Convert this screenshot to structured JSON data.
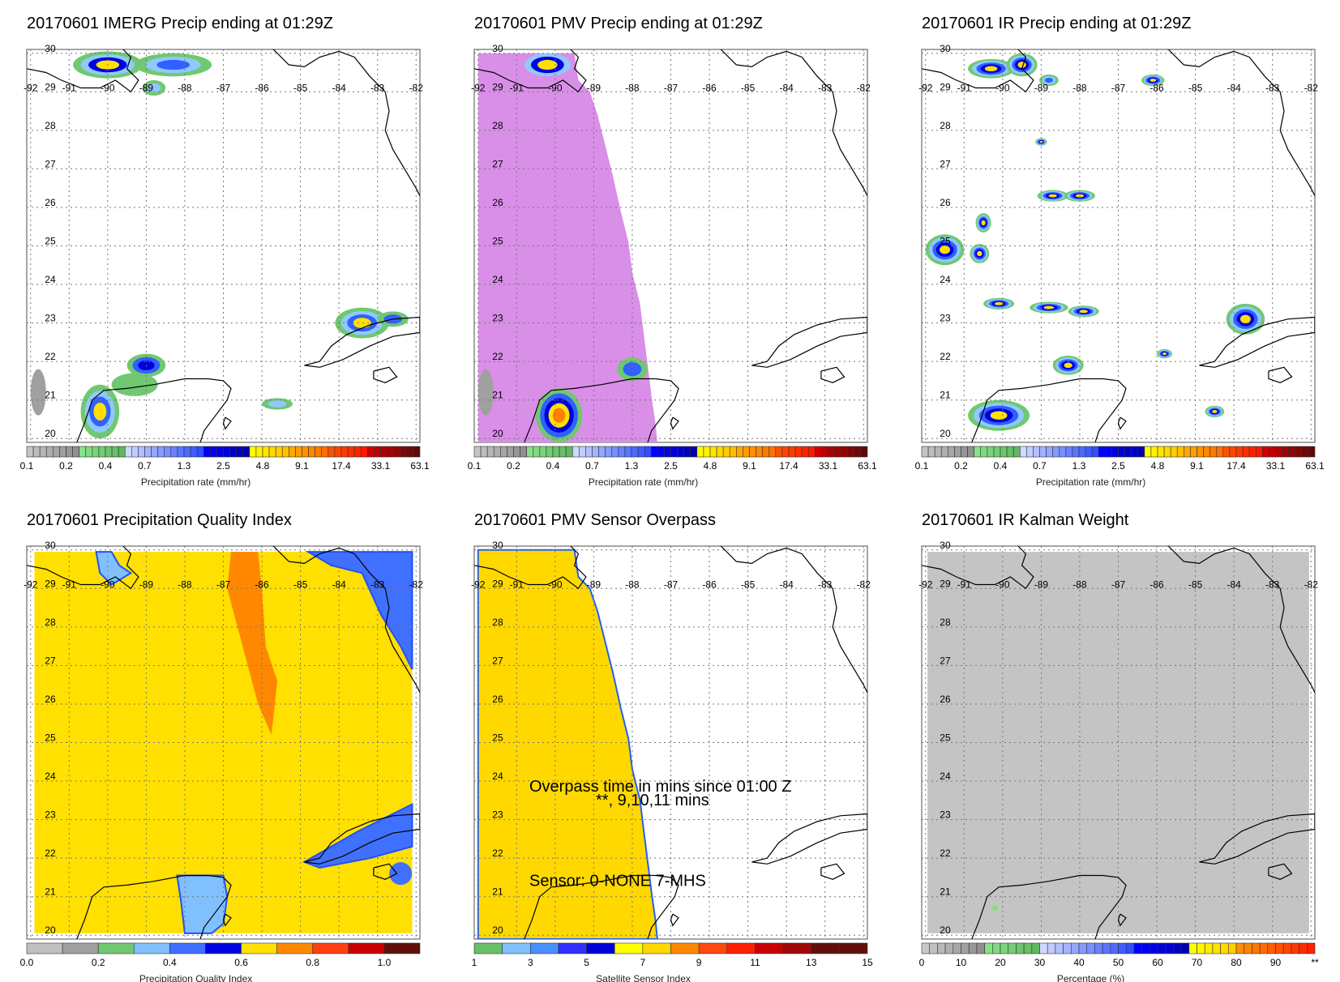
{
  "panels": [
    {
      "title": "20170601 IMERG Precip ending at 01:29Z",
      "colorbar": "precip"
    },
    {
      "title": "20170601 PMV Precip ending at 01:29Z",
      "colorbar": "precip"
    },
    {
      "title": "20170601 IR Precip ending at 01:29Z",
      "colorbar": "precip"
    },
    {
      "title": "20170601 Precipitation Quality Index",
      "colorbar": "pqi"
    },
    {
      "title": "20170601 PMV Sensor Overpass",
      "colorbar": "sensor",
      "annotation": {
        "line1": "Overpass time in mins since 01:00 Z",
        "line2": "**, 9,10,11 mins",
        "sensor": "Sensor:   0-NONE  7-MHS"
      }
    },
    {
      "title": "20170601 IR Kalman Weight",
      "colorbar": "kalman"
    }
  ],
  "axes": {
    "lon_labels": [
      "-92",
      "-91",
      "-90",
      "-89",
      "-88",
      "-87",
      "-86",
      "-85",
      "-84",
      "-83",
      "-82"
    ],
    "lat_labels": [
      "30",
      "29",
      "28",
      "27",
      "26",
      "25",
      "24",
      "23",
      "22",
      "21",
      "20"
    ]
  },
  "colorbars": {
    "precip": {
      "label": "Precipitation rate (mm/hr)",
      "ticks": [
        "0.1",
        "0.2",
        "0.4",
        "0.7",
        "1.3",
        "2.5",
        "4.8",
        "9.1",
        "17.4",
        "33.1",
        "63.1"
      ]
    },
    "pqi": {
      "label": "Precipitation Quality Index",
      "ticks": [
        "0.0",
        "0.2",
        "0.4",
        "0.6",
        "0.8",
        "1.0"
      ],
      "colors": [
        "#c0c0c0",
        "#a0a0a0",
        "#70c870",
        "#80c0ff",
        "#4070ff",
        "#0000e0",
        "#ffe000",
        "#ff8800",
        "#ff4010",
        "#c80000",
        "#601008"
      ]
    },
    "sensor": {
      "label": "Satellite Sensor Index",
      "ticks": [
        "1",
        "3",
        "5",
        "7",
        "9",
        "11",
        "13",
        "15"
      ],
      "colors": [
        "#68c068",
        "#80c0ff",
        "#4890ff",
        "#3030ff",
        "#0000d8",
        "#ffff00",
        "#ffd800",
        "#ff8800",
        "#ff4810",
        "#ff2000",
        "#c80000",
        "#a00808",
        "#601008",
        "#601008"
      ]
    },
    "kalman": {
      "label": "Percentage (%)",
      "ticks": [
        "0",
        "10",
        "20",
        "30",
        "40",
        "50",
        "60",
        "70",
        "80",
        "90",
        "**"
      ]
    }
  },
  "colors": {
    "pmv_coverage": "#d98ee8",
    "pqi_fill": "#ffe000",
    "overpass_fill": "#ffd800",
    "kalman_fill": "#c4c4c4"
  }
}
